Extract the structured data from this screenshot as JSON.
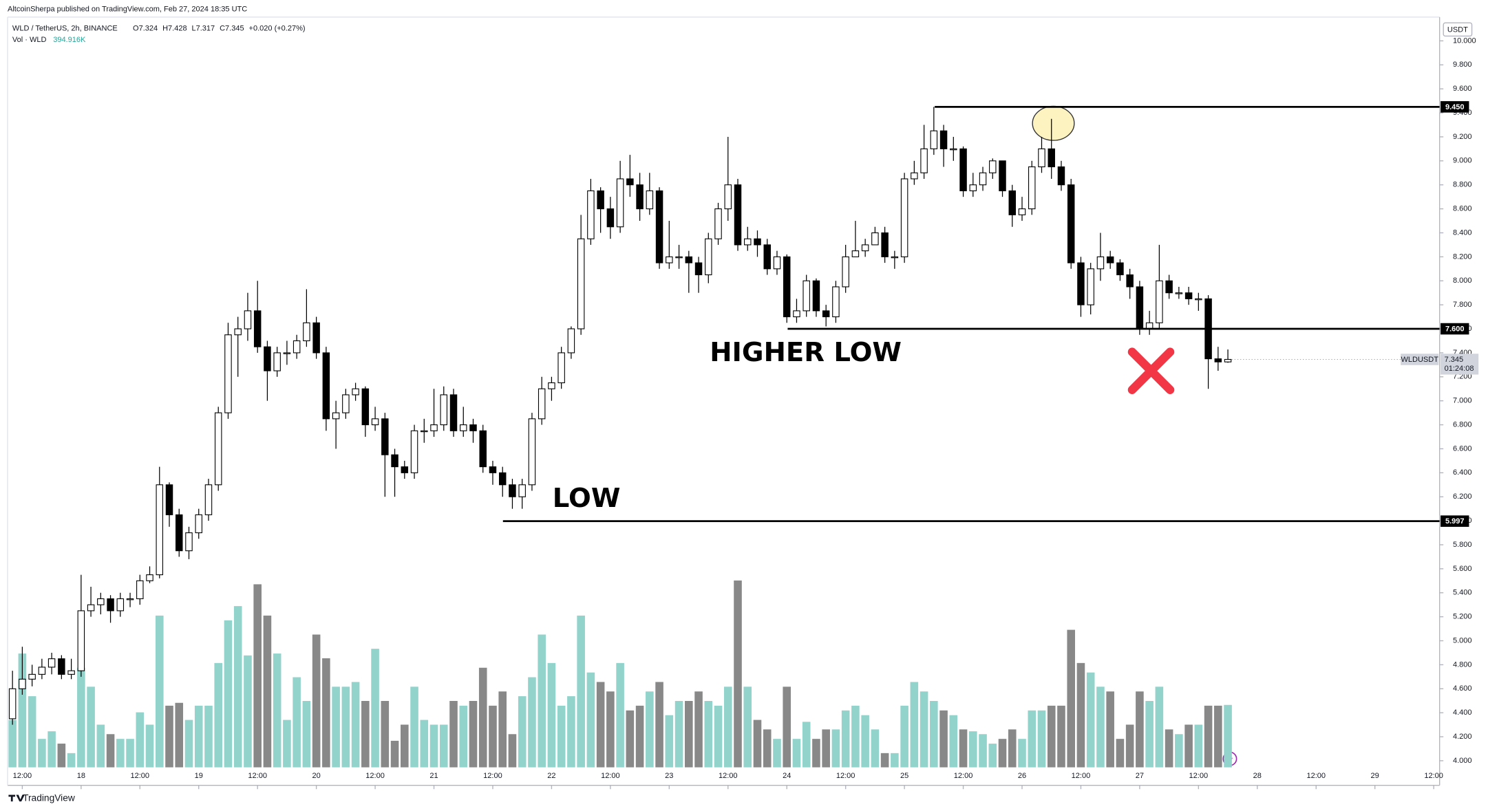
{
  "header": {
    "publisher": "AltcoinSherpa published on TradingView.com, Feb 27, 2024 18:35 UTC"
  },
  "chart_data": {
    "type": "candlestick",
    "symbol": "WLD / TetherUS, 2h, BINANCE",
    "legend_values": [
      "O7.324",
      "H7.428",
      "L7.317",
      "C7.345",
      "+0.020 (+0.27%)"
    ],
    "volume_legend": {
      "name": "Vol · WLD",
      "value_label": "394.916K"
    },
    "currency": "USDT",
    "ticker": "WLDUSDT",
    "countdown": "01:24:08",
    "open": [
      4.35,
      4.6,
      4.68,
      4.72,
      4.78,
      4.85,
      4.72,
      4.75,
      5.25,
      5.3,
      5.35,
      5.25,
      5.35,
      5.35,
      5.5,
      5.55,
      6.3,
      6.05,
      5.75,
      5.9,
      6.05,
      6.3,
      6.9,
      7.55,
      7.6,
      7.75,
      7.45,
      7.25,
      7.4,
      7.4,
      7.5,
      7.65,
      7.4,
      6.85,
      6.9,
      7.05,
      7.1,
      6.8,
      6.85,
      6.55,
      6.45,
      6.4,
      6.75,
      6.75,
      6.8,
      7.05,
      6.75,
      6.8,
      6.75,
      6.45,
      6.4,
      6.3,
      6.2,
      6.3,
      6.85,
      7.1,
      7.15,
      7.4,
      7.6,
      8.35,
      8.75,
      8.6,
      8.45,
      8.85,
      8.8,
      8.6,
      8.75,
      8.15,
      8.2,
      8.2,
      8.15,
      8.05,
      8.35,
      8.6,
      8.8,
      8.3,
      8.35,
      8.3,
      8.1,
      8.2,
      7.7,
      7.75,
      8.0,
      7.75,
      7.7,
      7.95,
      8.2,
      8.25,
      8.3,
      8.4,
      8.2,
      8.2,
      8.85,
      8.9,
      9.1,
      9.25,
      9.1,
      9.1,
      8.75,
      8.8,
      8.9,
      9.0,
      8.75,
      8.55,
      8.6,
      8.95,
      9.1,
      8.95,
      8.8,
      8.15,
      7.8,
      8.1,
      8.2,
      8.15,
      8.05,
      7.95,
      7.6,
      7.65,
      8.0,
      7.9,
      7.9,
      7.85,
      7.85,
      7.35,
      7.324
    ],
    "high": [
      4.75,
      4.95,
      4.8,
      4.85,
      4.9,
      4.88,
      4.85,
      5.55,
      5.45,
      5.4,
      5.38,
      5.4,
      5.4,
      5.55,
      5.62,
      6.45,
      6.32,
      6.1,
      5.95,
      6.1,
      6.35,
      6.95,
      7.65,
      7.7,
      7.9,
      8.0,
      7.5,
      7.45,
      7.5,
      7.55,
      7.93,
      7.7,
      7.45,
      7.0,
      7.1,
      7.15,
      7.12,
      6.95,
      6.9,
      6.6,
      6.5,
      6.8,
      6.85,
      7.1,
      7.12,
      7.1,
      6.95,
      6.85,
      6.8,
      6.5,
      6.45,
      6.35,
      6.35,
      6.9,
      7.2,
      7.2,
      7.45,
      7.62,
      8.55,
      8.85,
      8.78,
      8.7,
      9.0,
      9.05,
      8.9,
      8.9,
      8.78,
      8.5,
      8.3,
      8.25,
      8.2,
      8.4,
      8.65,
      9.2,
      8.85,
      8.45,
      8.42,
      8.35,
      8.25,
      8.22,
      7.85,
      8.05,
      8.02,
      7.8,
      8.0,
      8.3,
      8.5,
      8.35,
      8.45,
      8.45,
      8.25,
      8.9,
      9.0,
      9.3,
      9.45,
      9.3,
      9.2,
      9.12,
      8.9,
      8.95,
      9.02,
      9.0,
      8.8,
      8.7,
      9.0,
      9.2,
      9.35,
      9.0,
      8.85,
      8.2,
      8.15,
      8.4,
      8.25,
      8.18,
      8.1,
      8.0,
      7.75,
      8.3,
      8.05,
      7.95,
      7.95,
      7.9,
      7.88,
      7.45,
      7.428
    ],
    "low": [
      4.3,
      4.55,
      4.62,
      4.68,
      4.72,
      4.68,
      4.68,
      4.7,
      5.2,
      5.22,
      5.15,
      5.2,
      5.28,
      5.3,
      5.48,
      5.52,
      5.95,
      5.7,
      5.68,
      5.85,
      6.0,
      6.25,
      6.85,
      7.2,
      7.5,
      7.4,
      7.0,
      7.2,
      7.3,
      7.35,
      7.45,
      7.35,
      6.75,
      6.6,
      6.85,
      7.0,
      6.7,
      6.75,
      6.2,
      6.2,
      6.35,
      6.35,
      6.65,
      6.7,
      6.75,
      6.7,
      6.7,
      6.65,
      6.4,
      6.3,
      6.2,
      6.1,
      6.1,
      6.25,
      6.8,
      7.0,
      7.1,
      7.35,
      7.55,
      8.3,
      8.4,
      8.35,
      8.4,
      8.7,
      8.5,
      8.55,
      8.1,
      8.1,
      8.1,
      7.9,
      7.9,
      7.98,
      8.3,
      8.5,
      8.25,
      8.25,
      8.2,
      8.05,
      8.05,
      7.65,
      7.65,
      7.7,
      7.7,
      7.62,
      7.65,
      7.9,
      8.2,
      8.2,
      8.3,
      8.15,
      8.1,
      8.15,
      8.8,
      8.85,
      9.05,
      8.95,
      9.0,
      8.7,
      8.7,
      8.75,
      8.85,
      8.7,
      8.45,
      8.5,
      8.55,
      8.9,
      8.85,
      8.75,
      8.1,
      7.7,
      7.72,
      8.0,
      8.1,
      8.0,
      7.85,
      7.55,
      7.55,
      7.6,
      7.85,
      7.85,
      7.8,
      7.75,
      7.1,
      7.25,
      7.317
    ],
    "close": [
      4.6,
      4.68,
      4.72,
      4.78,
      4.85,
      4.72,
      4.75,
      5.25,
      5.3,
      5.35,
      5.25,
      5.35,
      5.35,
      5.5,
      5.55,
      6.3,
      6.05,
      5.75,
      5.9,
      6.05,
      6.3,
      6.9,
      7.55,
      7.6,
      7.75,
      7.45,
      7.25,
      7.4,
      7.4,
      7.5,
      7.65,
      7.4,
      6.85,
      6.9,
      7.05,
      7.1,
      6.8,
      6.85,
      6.55,
      6.45,
      6.4,
      6.75,
      6.75,
      6.8,
      7.05,
      6.75,
      6.8,
      6.75,
      6.45,
      6.4,
      6.3,
      6.2,
      6.3,
      6.85,
      7.1,
      7.15,
      7.4,
      7.6,
      8.35,
      8.75,
      8.6,
      8.45,
      8.85,
      8.8,
      8.6,
      8.75,
      8.15,
      8.2,
      8.2,
      8.15,
      8.05,
      8.35,
      8.6,
      8.8,
      8.3,
      8.35,
      8.3,
      8.1,
      8.2,
      7.7,
      7.75,
      8.0,
      7.75,
      7.7,
      7.95,
      8.2,
      8.25,
      8.3,
      8.4,
      8.2,
      8.2,
      8.85,
      8.9,
      9.1,
      9.25,
      9.1,
      9.1,
      8.75,
      8.8,
      8.9,
      9.0,
      8.75,
      8.55,
      8.6,
      8.95,
      9.1,
      8.95,
      8.8,
      8.15,
      7.8,
      8.1,
      8.2,
      8.15,
      8.05,
      7.95,
      7.6,
      7.65,
      8.0,
      7.9,
      7.9,
      7.85,
      7.85,
      7.35,
      7.324,
      7.345
    ],
    "volume": [
      300,
      720,
      450,
      180,
      228,
      150,
      90,
      630,
      510,
      270,
      210,
      180,
      180,
      348,
      270,
      960,
      390,
      408,
      300,
      390,
      390,
      660,
      930,
      1020,
      708,
      1158,
      960,
      720,
      300,
      570,
      420,
      840,
      690,
      510,
      510,
      540,
      420,
      750,
      420,
      168,
      270,
      510,
      300,
      270,
      270,
      420,
      390,
      420,
      630,
      390,
      480,
      210,
      450,
      570,
      840,
      660,
      390,
      450,
      960,
      600,
      540,
      480,
      660,
      360,
      390,
      480,
      540,
      330,
      420,
      420,
      480,
      420,
      390,
      510,
      1182,
      510,
      300,
      240,
      180,
      510,
      180,
      288,
      180,
      240,
      240,
      360,
      390,
      330,
      240,
      90,
      90,
      390,
      540,
      480,
      420,
      360,
      330,
      240,
      228,
      210,
      150,
      180,
      240,
      180,
      360,
      360,
      390,
      390,
      870,
      660,
      600,
      510,
      480,
      180,
      270,
      480,
      420,
      510,
      240,
      210,
      270,
      270,
      390,
      390,
      394.916
    ],
    "up_color": "#ffffff",
    "down_color": "#000000",
    "volume_up_color": "#92d3cc",
    "volume_down_color": "#888888",
    "xlim": [
      -0.5,
      145.6
    ],
    "xticks": [
      {
        "value": 1,
        "label": "12:00"
      },
      {
        "value": 7,
        "label": "18"
      },
      {
        "value": 13,
        "label": "12:00"
      },
      {
        "value": 19,
        "label": "19"
      },
      {
        "value": 25,
        "label": "12:00"
      },
      {
        "value": 31,
        "label": "20"
      },
      {
        "value": 37,
        "label": "12:00"
      },
      {
        "value": 43,
        "label": "21"
      },
      {
        "value": 49,
        "label": "12:00"
      },
      {
        "value": 55,
        "label": "22"
      },
      {
        "value": 61,
        "label": "12:00"
      },
      {
        "value": 67,
        "label": "23"
      },
      {
        "value": 73,
        "label": "12:00"
      },
      {
        "value": 79,
        "label": "24"
      },
      {
        "value": 85,
        "label": "12:00"
      },
      {
        "value": 91,
        "label": "25"
      },
      {
        "value": 97,
        "label": "12:00"
      },
      {
        "value": 103,
        "label": "26"
      },
      {
        "value": 109,
        "label": "12:00"
      },
      {
        "value": 115,
        "label": "27"
      },
      {
        "value": 121,
        "label": "12:00"
      },
      {
        "value": 127,
        "label": "28"
      },
      {
        "value": 133,
        "label": "12:00"
      },
      {
        "value": 139,
        "label": "29"
      },
      {
        "value": 145,
        "label": "12:00"
      }
    ],
    "ylim": [
      3.945,
      10.198
    ],
    "yticks": [
      {
        "value": 4.0,
        "label": "4.000"
      },
      {
        "value": 4.2,
        "label": "4.200"
      },
      {
        "value": 4.4,
        "label": "4.400"
      },
      {
        "value": 4.6,
        "label": "4.600"
      },
      {
        "value": 4.8,
        "label": "4.800"
      },
      {
        "value": 5.0,
        "label": "5.000"
      },
      {
        "value": 5.2,
        "label": "5.200"
      },
      {
        "value": 5.4,
        "label": "5.400"
      },
      {
        "value": 5.6,
        "label": "5.600"
      },
      {
        "value": 5.8,
        "label": "5.800"
      },
      {
        "value": 6.0,
        "label": "6.000"
      },
      {
        "value": 6.2,
        "label": "6.200"
      },
      {
        "value": 6.4,
        "label": "6.400"
      },
      {
        "value": 6.6,
        "label": "6.600"
      },
      {
        "value": 6.8,
        "label": "6.800"
      },
      {
        "value": 7.0,
        "label": "7.000"
      },
      {
        "value": 7.2,
        "label": "7.200"
      },
      {
        "value": 7.4,
        "label": "7.400"
      },
      {
        "value": 7.6,
        "label": "7.600"
      },
      {
        "value": 7.8,
        "label": "7.800"
      },
      {
        "value": 8.0,
        "label": "8.000"
      },
      {
        "value": 8.2,
        "label": "8.200"
      },
      {
        "value": 8.4,
        "label": "8.400"
      },
      {
        "value": 8.6,
        "label": "8.600"
      },
      {
        "value": 8.8,
        "label": "8.800"
      },
      {
        "value": 9.0,
        "label": "9.000"
      },
      {
        "value": 9.2,
        "label": "9.200"
      },
      {
        "value": 9.4,
        "label": "9.400"
      },
      {
        "value": 9.6,
        "label": "9.600"
      },
      {
        "value": 9.8,
        "label": "9.800"
      },
      {
        "value": 10.0,
        "label": "10.000"
      }
    ],
    "grid": false,
    "levels": [
      {
        "value": 9.45,
        "label": "9.450"
      },
      {
        "value": 7.6,
        "label": "7.600"
      },
      {
        "value": 5.997,
        "label": "5.997"
      }
    ],
    "annotations": [
      "HIGHER LOW",
      "LOW"
    ]
  },
  "footer": {
    "brand": "TradingView"
  }
}
